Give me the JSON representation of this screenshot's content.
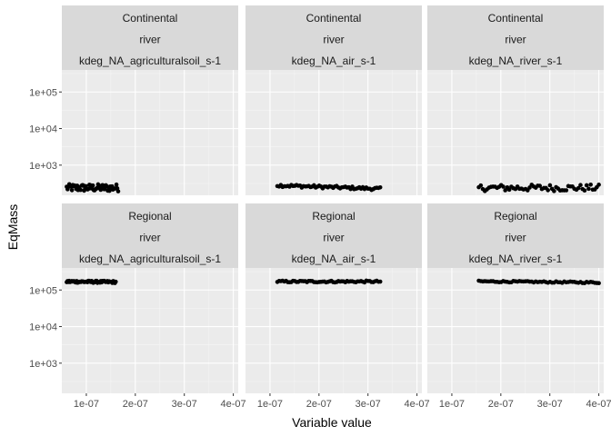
{
  "chart_data": {
    "type": "scatter",
    "xlabel": "Variable value",
    "ylabel": "EqMass",
    "y_scale": "log10",
    "xlim": [
      5e-08,
      4.1e-07
    ],
    "ylim": [
      150,
      400000
    ],
    "x_ticks": [
      1e-07,
      2e-07,
      3e-07,
      4e-07
    ],
    "x_tick_labels": [
      "1e-07",
      "2e-07",
      "3e-07",
      "4e-07"
    ],
    "y_ticks": [
      1000,
      10000,
      100000
    ],
    "y_tick_labels": [
      "1e+03",
      "1e+04",
      "1e+05"
    ],
    "grid": true,
    "facet_rows": [
      {
        "strip": "Continental",
        "panels": [
          {
            "labels": [
              "Continental",
              "river",
              "kdeg_NA_agriculturalsoil_s-1"
            ],
            "x_range": [
              6e-08,
              1.65e-07
            ],
            "y_start": 240,
            "y_end": 240,
            "jitter": 0.1
          },
          {
            "labels": [
              "Continental",
              "river",
              "kdeg_NA_air_s-1"
            ],
            "x_range": [
              1.15e-07,
              3.25e-07
            ],
            "y_start": 280,
            "y_end": 225,
            "jitter": 0.04
          },
          {
            "labels": [
              "Continental",
              "river",
              "kdeg_NA_river_s-1"
            ],
            "x_range": [
              1.55e-07,
              4e-07
            ],
            "y_start": 240,
            "y_end": 240,
            "jitter": 0.09
          }
        ]
      },
      {
        "strip": "Regional",
        "panels": [
          {
            "labels": [
              "Regional",
              "river",
              "kdeg_NA_agriculturalsoil_s-1"
            ],
            "x_range": [
              6e-08,
              1.6e-07
            ],
            "y_start": 170000,
            "y_end": 165000,
            "jitter": 0.03
          },
          {
            "labels": [
              "Regional",
              "river",
              "kdeg_NA_air_s-1"
            ],
            "x_range": [
              1.15e-07,
              3.25e-07
            ],
            "y_start": 170000,
            "y_end": 170000,
            "jitter": 0.025
          },
          {
            "labels": [
              "Regional",
              "river",
              "kdeg_NA_river_s-1"
            ],
            "x_range": [
              1.55e-07,
              4e-07
            ],
            "y_start": 172000,
            "y_end": 160000,
            "jitter": 0.02
          }
        ]
      }
    ]
  }
}
